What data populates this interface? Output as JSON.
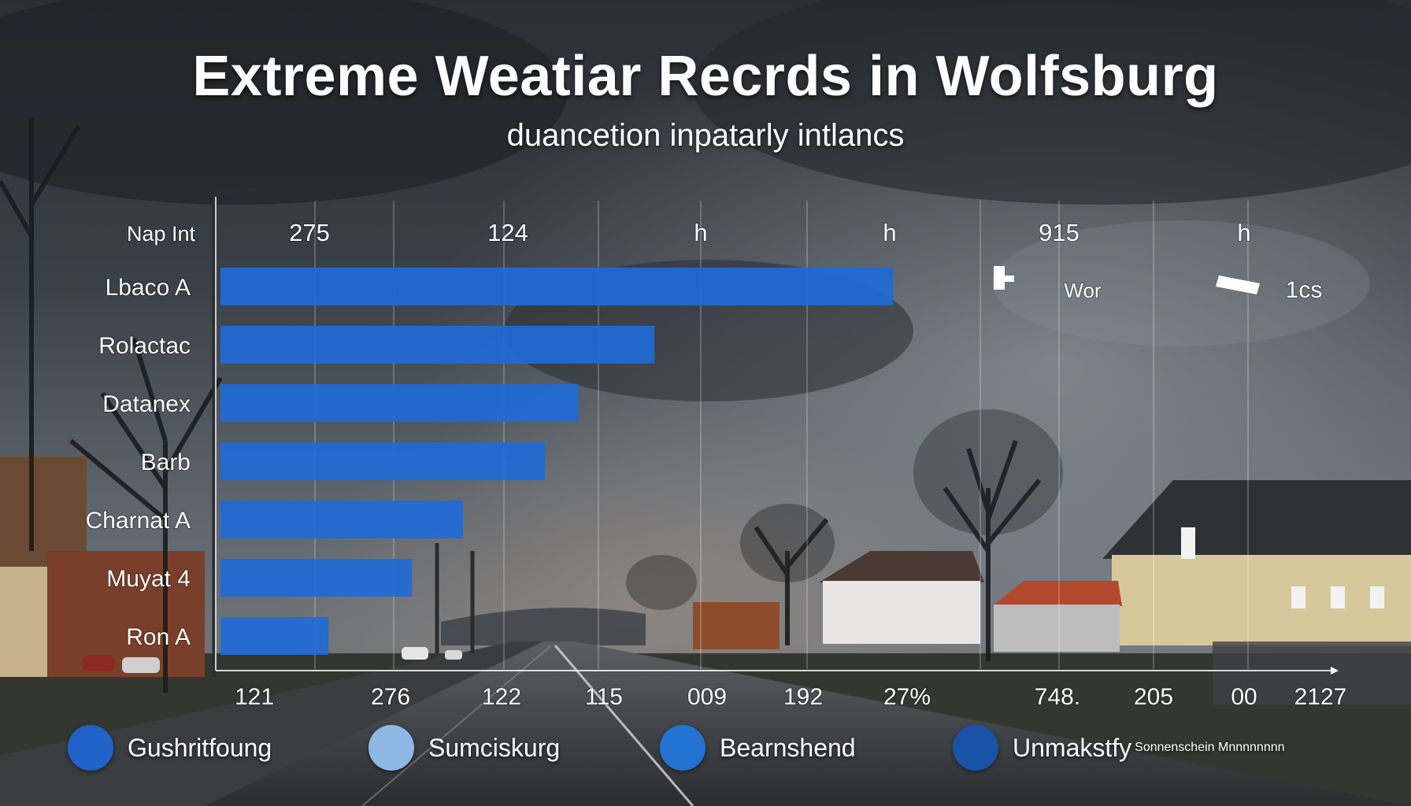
{
  "title": "Extreme Weatiar Recrds in Wolfsburg",
  "subtitle": "duancetion inpatarly intlancs",
  "colors": {
    "bar": "#1f6ad6",
    "legend": [
      "#1f63c8",
      "#8fb7e6",
      "#2273d2",
      "#1a52a8"
    ]
  },
  "chart_data": {
    "type": "bar",
    "orientation": "horizontal",
    "categories": [
      "Lbaco A",
      "Rolactac",
      "Datanex",
      "Barb",
      "Charnat A",
      "Muyat 4",
      "Ron A"
    ],
    "values": [
      860,
      555,
      458,
      415,
      310,
      245,
      138
    ],
    "xlim": [
      0,
      1420
    ],
    "top_row_label": "Nap Int",
    "top_labels": [
      "275",
      "124",
      "h",
      "h",
      "915",
      "h"
    ],
    "top_row_extras": [
      "Wor",
      "1cs"
    ],
    "bottom_labels": [
      "121",
      "276",
      "122",
      "115",
      "009",
      "192",
      "27%",
      "748.",
      "205",
      "00",
      "2127"
    ],
    "grid": true,
    "legend_position": "bottom"
  },
  "legend": {
    "items": [
      {
        "label": "Gushritfoung"
      },
      {
        "label": "Sumciskurg"
      },
      {
        "label": "Bearnshend"
      },
      {
        "label": "Unmakstfy",
        "note": "Sonnenschein Mnnnnnnnn"
      }
    ]
  }
}
